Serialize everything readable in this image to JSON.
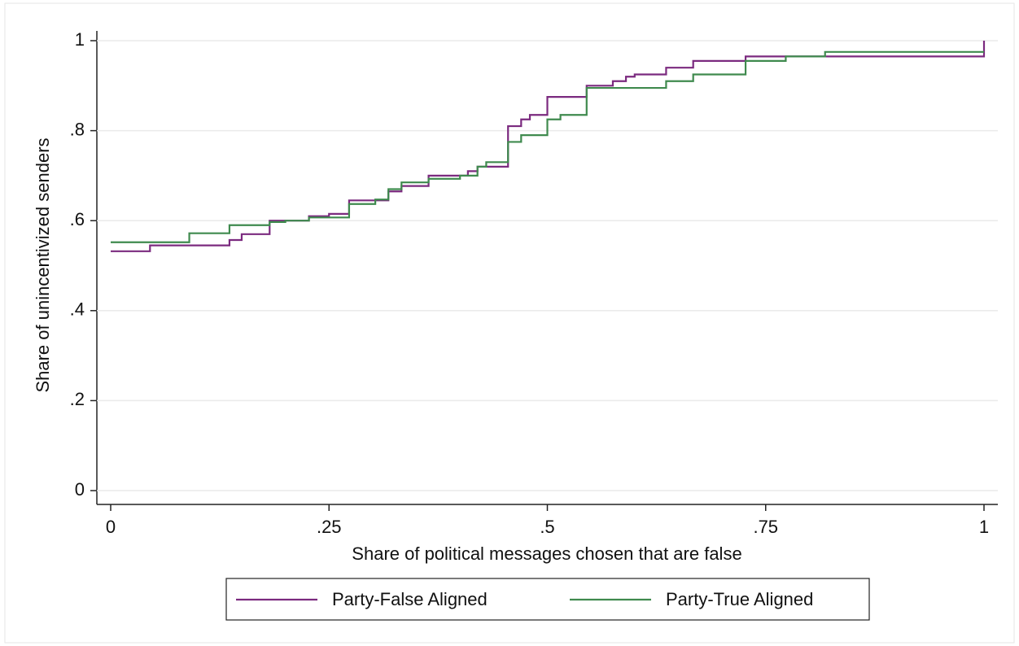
{
  "chart_data": {
    "type": "step",
    "x_label": "Share of political messages chosen that are false",
    "y_label": "Share of unincentivized senders",
    "xlim": [
      0,
      1
    ],
    "ylim": [
      0,
      1
    ],
    "xticks": [
      0,
      {
        "value": 0.25,
        "label": ".25"
      },
      {
        "value": 0.5,
        "label": ".5"
      },
      {
        "value": 0.75,
        "label": ".75"
      },
      1
    ],
    "yticks": [
      0,
      {
        "value": 0.2,
        "label": ".2"
      },
      {
        "value": 0.4,
        "label": ".4"
      },
      {
        "value": 0.6,
        "label": ".6"
      },
      {
        "value": 0.8,
        "label": ".8"
      },
      1
    ],
    "grid": true,
    "legend": "bottom",
    "series": [
      {
        "name": "Party-False Aligned",
        "color": "#7b2a7f",
        "x": [
          0,
          0.045,
          0.136,
          0.15,
          0.182,
          0.227,
          0.25,
          0.273,
          0.318,
          0.333,
          0.364,
          0.409,
          0.42,
          0.455,
          0.47,
          0.48,
          0.5,
          0.545,
          0.575,
          0.59,
          0.6,
          0.636,
          0.667,
          0.727,
          1
        ],
        "values": [
          0.532,
          0.545,
          0.557,
          0.57,
          0.6,
          0.61,
          0.615,
          0.645,
          0.665,
          0.677,
          0.7,
          0.71,
          0.72,
          0.81,
          0.825,
          0.835,
          0.875,
          0.9,
          0.91,
          0.92,
          0.925,
          0.94,
          0.955,
          0.965,
          1
        ]
      },
      {
        "name": "Party-True Aligned",
        "color": "#3f8a4e",
        "x": [
          0,
          0.09,
          0.136,
          0.182,
          0.2,
          0.227,
          0.273,
          0.303,
          0.318,
          0.333,
          0.364,
          0.4,
          0.42,
          0.43,
          0.455,
          0.47,
          0.5,
          0.515,
          0.545,
          0.636,
          0.667,
          0.727,
          0.773,
          0.818,
          1
        ],
        "values": [
          0.552,
          0.572,
          0.59,
          0.597,
          0.6,
          0.607,
          0.637,
          0.647,
          0.67,
          0.685,
          0.693,
          0.7,
          0.72,
          0.73,
          0.775,
          0.79,
          0.825,
          0.835,
          0.895,
          0.91,
          0.925,
          0.955,
          0.965,
          0.975,
          0.975
        ]
      }
    ]
  }
}
